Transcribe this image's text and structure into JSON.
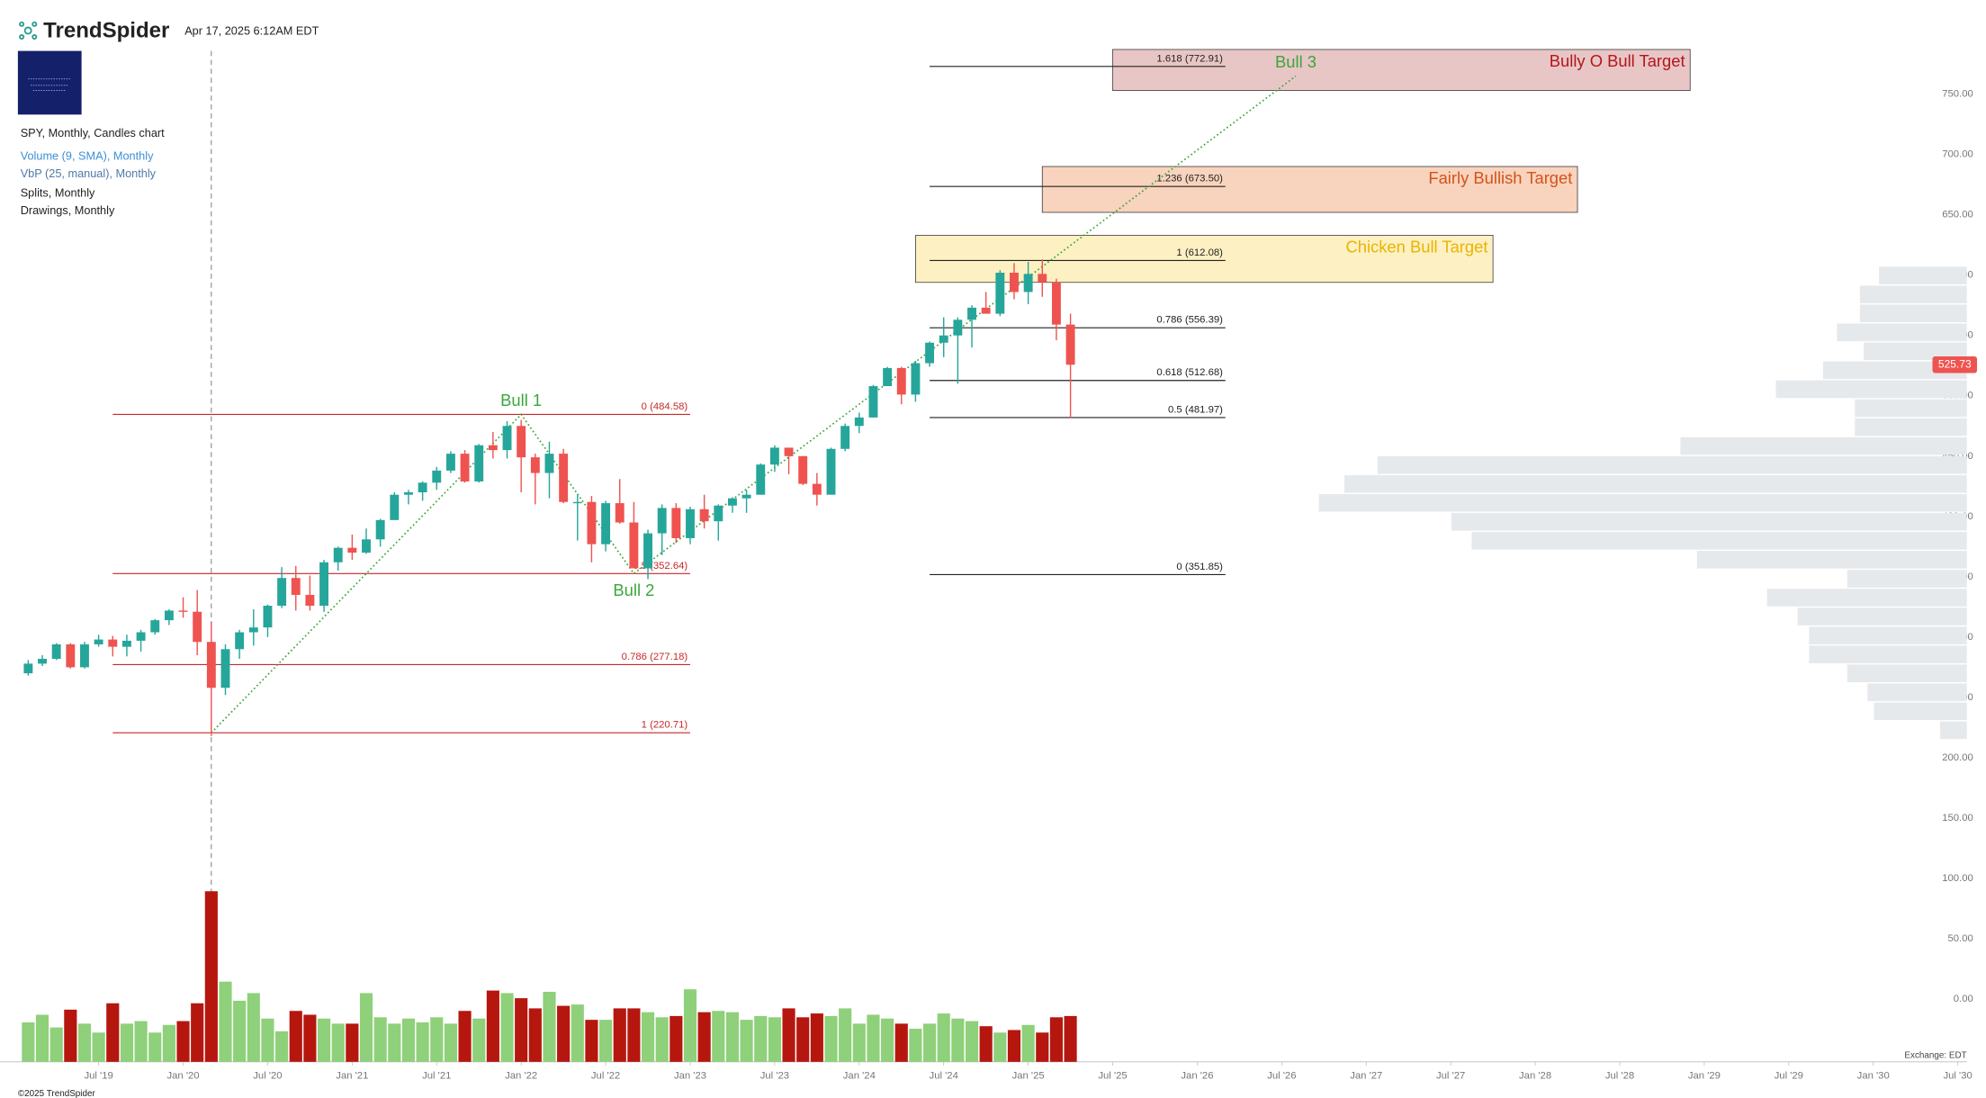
{
  "header": {
    "brand": "TrendSpider",
    "timestamp": "Apr 17, 2025 6:12AM EDT",
    "legend": [
      "SPY, Monthly, Candles chart",
      "Volume (9, SMA), Monthly",
      "VbP (25, manual), Monthly",
      "Splits, Monthly",
      "Drawings, Monthly"
    ]
  },
  "footer": {
    "copyright": "©2025 TrendSpider",
    "exchange": "Exchange: EDT"
  },
  "chart_data": {
    "type": "candlestick",
    "up_color": "#26a69a",
    "down_color": "#ef5350",
    "volume_up_color": "#8fd07a",
    "volume_down_color": "#b5170f",
    "vbp_color": "#e6e9ec",
    "xlim": [
      "2018-12",
      "2030-09"
    ],
    "ylim": [
      -52,
      828
    ],
    "yticks": [
      {
        "value": 0,
        "label": "0.00"
      },
      {
        "value": 50,
        "label": "50.00"
      },
      {
        "value": 100,
        "label": "100.00"
      },
      {
        "value": 150,
        "label": "150.00"
      },
      {
        "value": 200,
        "label": "200.00"
      },
      {
        "value": 250,
        "label": "250.00"
      },
      {
        "value": 300,
        "label": "300.00"
      },
      {
        "value": 350,
        "label": "350.00"
      },
      {
        "value": 400,
        "label": "400.00"
      },
      {
        "value": 450,
        "label": "450.00"
      },
      {
        "value": 500,
        "label": "500.00"
      },
      {
        "value": 550,
        "label": "550.00"
      },
      {
        "value": 600,
        "label": "600.00"
      },
      {
        "value": 650,
        "label": "650.00"
      },
      {
        "value": 700,
        "label": "700.00"
      },
      {
        "value": 750,
        "label": "750.00"
      }
    ],
    "xticks": [
      {
        "value": "2019-07",
        "label": "Jul '19"
      },
      {
        "value": "2020-01",
        "label": "Jan '20"
      },
      {
        "value": "2020-07",
        "label": "Jul '20"
      },
      {
        "value": "2021-01",
        "label": "Jan '21"
      },
      {
        "value": "2021-07",
        "label": "Jul '21"
      },
      {
        "value": "2022-01",
        "label": "Jan '22"
      },
      {
        "value": "2022-07",
        "label": "Jul '22"
      },
      {
        "value": "2023-01",
        "label": "Jan '23"
      },
      {
        "value": "2023-07",
        "label": "Jul '23"
      },
      {
        "value": "2024-01",
        "label": "Jan '24"
      },
      {
        "value": "2024-07",
        "label": "Jul '24"
      },
      {
        "value": "2025-01",
        "label": "Jan '25"
      },
      {
        "value": "2025-07",
        "label": "Jul '25"
      },
      {
        "value": "2026-01",
        "label": "Jan '26"
      },
      {
        "value": "2026-07",
        "label": "Jul '26"
      },
      {
        "value": "2027-01",
        "label": "Jan '27"
      },
      {
        "value": "2027-07",
        "label": "Jul '27"
      },
      {
        "value": "2028-01",
        "label": "Jan '28"
      },
      {
        "value": "2028-07",
        "label": "Jul '28"
      },
      {
        "value": "2029-01",
        "label": "Jan '29"
      },
      {
        "value": "2029-07",
        "label": "Jul '29"
      },
      {
        "value": "2030-01",
        "label": "Jan '30"
      },
      {
        "value": "2030-07",
        "label": "Jul '30"
      }
    ],
    "candles": {
      "dates": [
        "2019-02",
        "2019-03",
        "2019-04",
        "2019-05",
        "2019-06",
        "2019-07",
        "2019-08",
        "2019-09",
        "2019-10",
        "2019-11",
        "2019-12",
        "2020-01",
        "2020-02",
        "2020-03",
        "2020-04",
        "2020-05",
        "2020-06",
        "2020-07",
        "2020-08",
        "2020-09",
        "2020-10",
        "2020-11",
        "2020-12",
        "2021-01",
        "2021-02",
        "2021-03",
        "2021-04",
        "2021-05",
        "2021-06",
        "2021-07",
        "2021-08",
        "2021-09",
        "2021-10",
        "2021-11",
        "2021-12",
        "2022-01",
        "2022-02",
        "2022-03",
        "2022-04",
        "2022-05",
        "2022-06",
        "2022-07",
        "2022-08",
        "2022-09",
        "2022-10",
        "2022-11",
        "2022-12",
        "2023-01",
        "2023-02",
        "2023-03",
        "2023-04",
        "2023-05",
        "2023-06",
        "2023-07",
        "2023-08",
        "2023-09",
        "2023-10",
        "2023-11",
        "2023-12",
        "2024-01",
        "2024-02",
        "2024-03",
        "2024-04",
        "2024-05",
        "2024-06",
        "2024-07",
        "2024-08",
        "2024-09",
        "2024-10",
        "2024-11",
        "2024-12",
        "2025-01",
        "2025-02",
        "2025-03",
        "2025-04"
      ],
      "open": [
        270,
        278,
        282,
        294,
        275,
        294,
        298,
        292,
        297,
        304,
        314,
        322,
        321,
        296,
        258,
        290,
        304,
        308,
        326,
        349,
        335,
        326,
        362,
        374,
        370,
        381,
        397,
        418,
        420,
        428,
        438,
        452,
        429,
        459,
        455,
        475,
        449,
        436,
        452,
        412,
        412,
        377,
        411,
        395,
        357,
        386,
        407,
        382,
        406,
        396,
        409,
        415,
        418,
        443,
        457,
        450,
        427,
        418,
        456,
        475,
        482,
        508,
        523,
        501,
        527,
        544,
        550,
        563,
        573,
        568,
        602,
        586,
        601,
        594,
        559
      ],
      "high": [
        281,
        285,
        295,
        295,
        296,
        302,
        301,
        302,
        306,
        315,
        323,
        333,
        339,
        313,
        294,
        306,
        323,
        327,
        358,
        359,
        351,
        364,
        375,
        385,
        390,
        398,
        420,
        422,
        429,
        441,
        454,
        455,
        460,
        470,
        479,
        480,
        452,
        462,
        456,
        418,
        417,
        413,
        431,
        412,
        389,
        410,
        411,
        408,
        418,
        410,
        416,
        422,
        444,
        459,
        452,
        450,
        436,
        457,
        477,
        486,
        509,
        524,
        524,
        529,
        545,
        565,
        565,
        575,
        586,
        604,
        610,
        611,
        613,
        597,
        568
      ],
      "low": [
        268,
        276,
        281,
        274,
        274,
        292,
        284,
        284,
        288,
        302,
        310,
        316,
        285,
        218,
        252,
        282,
        293,
        300,
        324,
        322,
        322,
        321,
        355,
        364,
        369,
        375,
        398,
        410,
        413,
        422,
        436,
        428,
        428,
        448,
        448,
        420,
        410,
        415,
        411,
        380,
        362,
        371,
        394,
        357,
        348,
        368,
        378,
        377,
        390,
        380,
        403,
        403,
        418,
        437,
        435,
        426,
        409,
        419,
        454,
        469,
        482,
        508,
        493,
        495,
        524,
        532,
        510,
        540,
        568,
        566,
        580,
        576,
        582,
        546,
        481.8
      ],
      "close": [
        278,
        282,
        294,
        275,
        294,
        298,
        292,
        297,
        304,
        314,
        322,
        321,
        296,
        258,
        290,
        304,
        308,
        326,
        349,
        335,
        326,
        362,
        374,
        370,
        381,
        397,
        418,
        420,
        428,
        438,
        452,
        429,
        459,
        455,
        475,
        449,
        436,
        452,
        412,
        412,
        377,
        411,
        395,
        357,
        386,
        407,
        382,
        406,
        396,
        409,
        415,
        418,
        443,
        457,
        450,
        427,
        418,
        456,
        475,
        482,
        508,
        523,
        501,
        527,
        544,
        550,
        563,
        573,
        568,
        602,
        586,
        601,
        594,
        559,
        525.73
      ],
      "volume": [
        775,
        925,
        675,
        1025,
        750,
        575,
        1150,
        750,
        800,
        575,
        725,
        800,
        1150,
        3350,
        1575,
        1200,
        1350,
        850,
        600,
        1000,
        925,
        850,
        750,
        750,
        1350,
        875,
        750,
        850,
        775,
        875,
        750,
        1000,
        850,
        1400,
        1350,
        1250,
        1050,
        1375,
        1100,
        1125,
        825,
        825,
        1050,
        1050,
        975,
        875,
        900,
        1425,
        975,
        1000,
        975,
        825,
        900,
        875,
        1050,
        875,
        950,
        900,
        1050,
        750,
        925,
        850,
        750,
        650,
        750,
        950,
        850,
        800,
        700,
        575,
        625,
        725,
        575,
        875,
        900
      ]
    },
    "vbp": {
      "bins": [
        215,
        230.7,
        246.4,
        262.1,
        277.8,
        293.5,
        309.2,
        324.9,
        340.6,
        356.3,
        372,
        387.7,
        403.4,
        419.1,
        434.8,
        450.5,
        466.2,
        481.9,
        497.6,
        513.3,
        529,
        544.7,
        560.4,
        576.1,
        591.8,
        607.5
      ],
      "values": [
        21,
        73,
        78,
        94,
        124,
        124,
        133,
        157,
        94,
        212,
        389,
        405,
        509,
        489,
        463,
        225,
        88,
        88,
        150,
        113,
        81,
        102,
        84,
        84,
        69
      ]
    },
    "event_date": "2020-03",
    "fib_sets": [
      {
        "color": "#c62828",
        "start": "2019-08",
        "end": "2023-01",
        "levels": [
          {
            "label": "0 (484.58)",
            "price": 484.58
          },
          {
            "label": "0.5 (352.64)",
            "price": 352.64
          },
          {
            "label": "0.786 (277.18)",
            "price": 277.18
          },
          {
            "label": "1 (220.71)",
            "price": 220.71
          }
        ]
      },
      {
        "color": "#222222",
        "start": "2024-06",
        "end": "2026-03",
        "levels": [
          {
            "label": "1.618 (772.91)",
            "price": 772.91
          },
          {
            "label": "1.236 (673.50)",
            "price": 673.5
          },
          {
            "label": "1 (612.08)",
            "price": 612.08
          },
          {
            "label": "0.786 (556.39)",
            "price": 556.39
          },
          {
            "label": "0.618 (512.68)",
            "price": 512.68
          },
          {
            "label": "0.5 (481.97)",
            "price": 481.97
          },
          {
            "label": "0 (351.85)",
            "price": 351.85
          }
        ]
      }
    ],
    "targets": [
      {
        "label": "Bully O Bull Target",
        "start": "2025-07",
        "end": "2028-12",
        "top": 787,
        "bottom": 753,
        "fill": "#e9c6c6",
        "text_color": "#b3161b"
      },
      {
        "label": "Fairly Bullish Target",
        "start": "2025-02",
        "end": "2028-04",
        "top": 690,
        "bottom": 652,
        "fill": "#f8d3bd",
        "text_color": "#d2541a"
      },
      {
        "label": "Chicken Bull Target",
        "start": "2024-05",
        "end": "2027-10",
        "top": 633,
        "bottom": 594,
        "fill": "#fdf0c2",
        "text_color": "#e8b400"
      }
    ],
    "wave": {
      "color": "#3aa63a",
      "points": [
        {
          "date": "2020-03",
          "price": 220.71
        },
        {
          "date": "2022-01",
          "price": 484.58,
          "label": "Bull 1"
        },
        {
          "date": "2022-09",
          "price": 352.64,
          "label": "Bull 2"
        },
        {
          "date": "2026-08",
          "price": 765,
          "label": "Bull 3"
        }
      ]
    }
  }
}
